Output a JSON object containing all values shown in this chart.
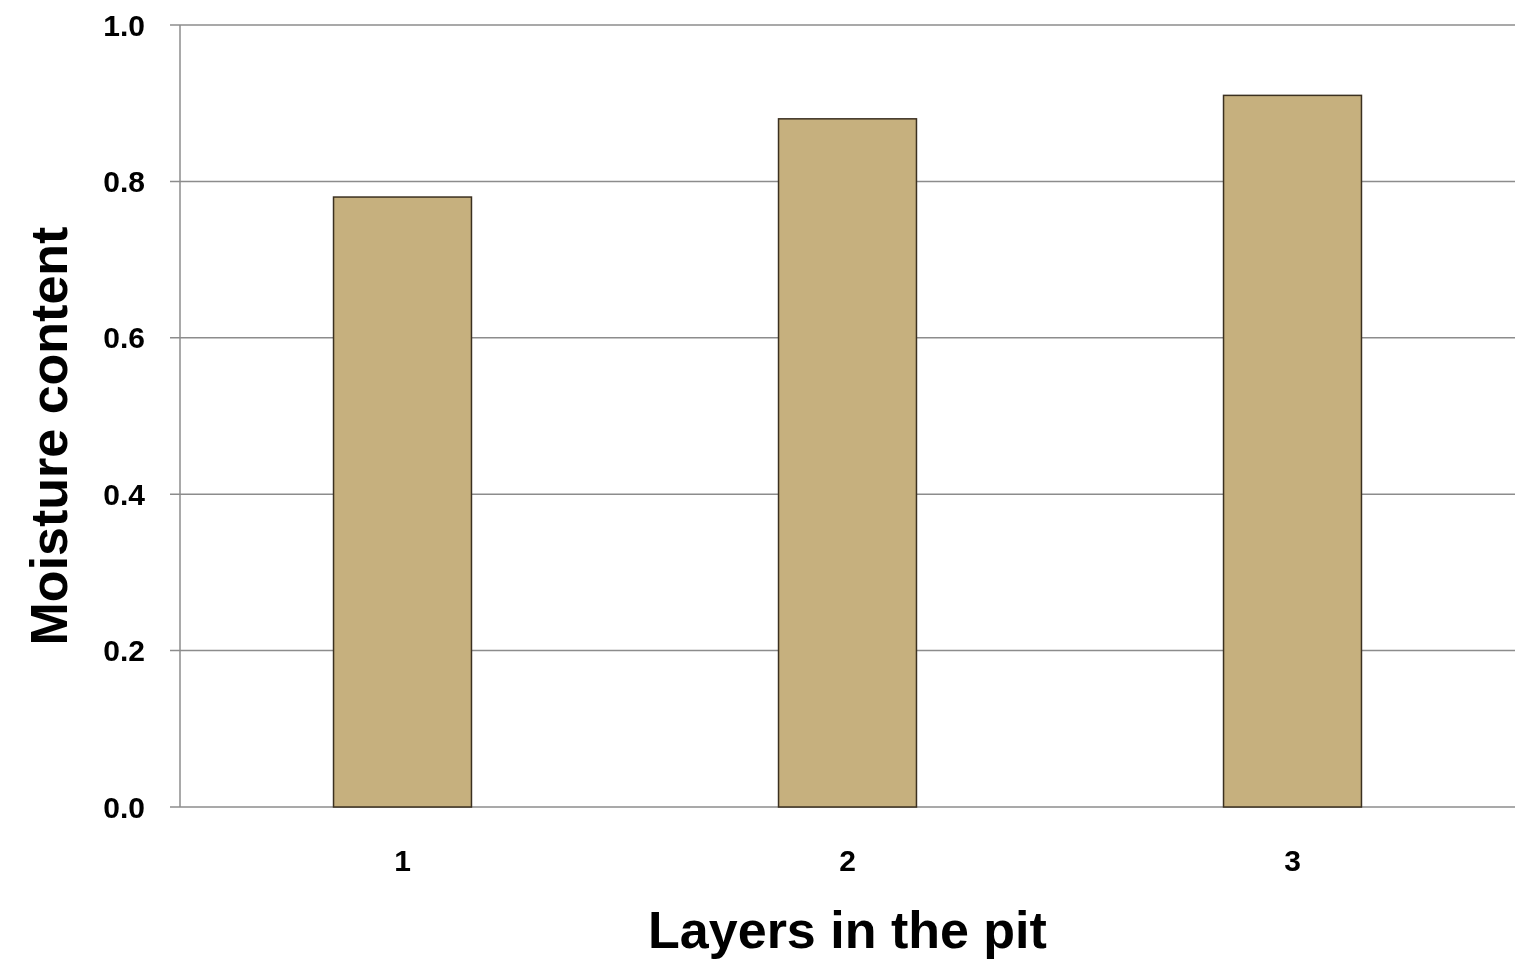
{
  "chart_data": {
    "type": "bar",
    "xlabel": "Layers in the pit",
    "ylabel": "Moisture content",
    "categories": [
      "1",
      "2",
      "3"
    ],
    "series": [
      {
        "color": "#c6b07e",
        "values": [
          0.78,
          0.88,
          0.91
        ]
      }
    ],
    "ylim": [
      0,
      1
    ],
    "yticks": [
      {
        "value": 0,
        "label": "0.0"
      },
      {
        "value": 0.2,
        "label": "0.2"
      },
      {
        "value": 0.4,
        "label": "0.4"
      },
      {
        "value": 0.6,
        "label": "0.6"
      },
      {
        "value": 0.8,
        "label": "0.8"
      },
      {
        "value": 1,
        "label": "1.0"
      }
    ],
    "grid": "y"
  }
}
